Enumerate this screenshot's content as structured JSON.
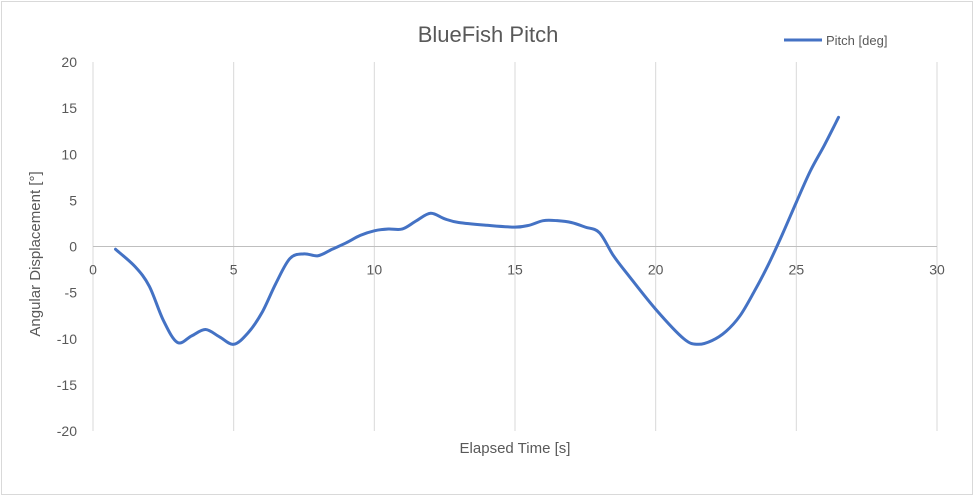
{
  "chart_data": {
    "type": "line",
    "title": "BlueFish Pitch",
    "xlabel": "Elapsed Time [s]",
    "ylabel": "Angular Displacement [°]",
    "xlim": [
      0,
      30
    ],
    "ylim": [
      -20,
      20
    ],
    "xticks": [
      0,
      5,
      10,
      15,
      20,
      25,
      30
    ],
    "yticks": [
      20,
      15,
      10,
      5,
      0,
      -5,
      -10,
      -15,
      -20
    ],
    "grid": {
      "vertical": true,
      "horizontal": false
    },
    "legend_position": "top-right",
    "series": [
      {
        "name": "Pitch [deg]",
        "color": "#4472C4",
        "x": [
          0.8,
          1.5,
          2.0,
          2.5,
          3.0,
          3.5,
          4.0,
          4.5,
          5.0,
          5.5,
          6.0,
          6.5,
          7.0,
          7.5,
          8.0,
          8.5,
          9.0,
          9.5,
          10.0,
          10.5,
          11.0,
          11.5,
          12.0,
          12.5,
          13.0,
          14.0,
          15.0,
          15.5,
          16.0,
          16.5,
          17.0,
          17.5,
          18.0,
          18.5,
          19.0,
          20.0,
          21.0,
          21.5,
          22.0,
          22.5,
          23.0,
          23.5,
          24.0,
          24.5,
          25.0,
          25.5,
          26.0,
          26.5
        ],
        "y": [
          -0.3,
          -2.2,
          -4.3,
          -8.0,
          -10.4,
          -9.7,
          -9.0,
          -9.8,
          -10.6,
          -9.4,
          -7.2,
          -4.0,
          -1.3,
          -0.8,
          -1.0,
          -0.3,
          0.4,
          1.2,
          1.7,
          1.9,
          1.9,
          2.8,
          3.6,
          3.0,
          2.6,
          2.3,
          2.1,
          2.3,
          2.8,
          2.8,
          2.6,
          2.1,
          1.5,
          -1.0,
          -3.0,
          -6.8,
          -10.0,
          -10.6,
          -10.2,
          -9.2,
          -7.5,
          -4.9,
          -2.0,
          1.3,
          4.8,
          8.2,
          11.0,
          14.0
        ]
      }
    ]
  }
}
